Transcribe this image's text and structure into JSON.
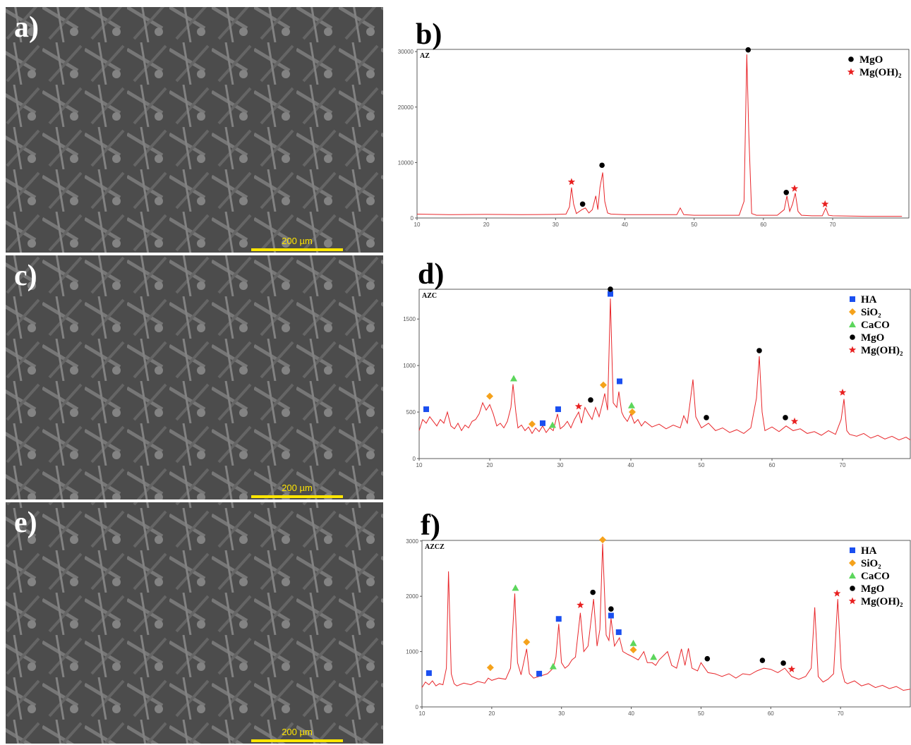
{
  "panels": [
    {
      "label": "a)",
      "scale_bar": "200 µm"
    },
    {
      "label": "c)",
      "scale_bar": "200 µm"
    },
    {
      "label": "e)",
      "scale_bar": "200 µm"
    }
  ],
  "chart_data": [
    {
      "type": "line",
      "label": "b)",
      "sample": "AZ",
      "color": "#e8262a",
      "x": [
        10,
        15,
        20,
        25,
        30,
        31.5,
        32.0,
        32.3,
        32.6,
        33,
        33.8,
        34.3,
        34.8,
        35.3,
        35.8,
        36.1,
        36.4,
        36.8,
        37.1,
        37.5,
        38,
        40,
        45,
        47.5,
        48,
        48.5,
        50,
        55,
        56.5,
        57.2,
        57.6,
        57.9,
        58.3,
        59,
        62,
        63,
        63.4,
        63.8,
        64.2,
        64.6,
        65,
        65.5,
        67,
        68.5,
        69,
        69.4,
        70,
        75,
        80
      ],
      "values": [
        700,
        600,
        650,
        600,
        650,
        700,
        2000,
        5500,
        2500,
        800,
        1500,
        1800,
        900,
        1500,
        4000,
        1500,
        5500,
        8200,
        3000,
        900,
        700,
        600,
        600,
        600,
        1800,
        600,
        500,
        500,
        500,
        3000,
        29500,
        15000,
        800,
        500,
        500,
        1500,
        4000,
        1200,
        2500,
        4500,
        1200,
        500,
        400,
        400,
        1800,
        500,
        400,
        300,
        300
      ],
      "xlim": [
        10,
        81
      ],
      "xticks": [
        10,
        20,
        30,
        40,
        50,
        60,
        70
      ],
      "ylim": [
        0,
        30400
      ],
      "yticks": [
        0,
        10000,
        20000,
        30000
      ],
      "legend": "upper right",
      "series": [
        {
          "name": "MgO",
          "marker": "circle",
          "color": "#000000",
          "x": [
            33.9,
            36.7,
            57.8,
            63.3
          ],
          "values": [
            2000,
            9000,
            29800,
            4100
          ]
        },
        {
          "name": "Mg(OH)₂",
          "marker": "star",
          "color": "#e82020",
          "x": [
            32.3,
            64.5,
            68.9
          ],
          "values": [
            6000,
            4800,
            2000
          ]
        }
      ]
    },
    {
      "type": "line",
      "label": "d)",
      "sample": "AZC",
      "color": "#e8262a",
      "x": [
        10,
        10.5,
        11,
        11.5,
        12,
        12.5,
        13,
        13.5,
        14,
        14.5,
        15,
        15.5,
        16,
        16.5,
        17,
        17.5,
        18,
        18.5,
        19,
        19.5,
        20,
        20.5,
        21,
        21.5,
        22,
        22.5,
        23,
        23.3,
        23.7,
        24,
        24.5,
        25,
        25.5,
        26,
        26.5,
        27,
        27.5,
        28,
        28.5,
        29,
        29.6,
        30,
        30.5,
        31,
        31.5,
        32,
        32.6,
        33,
        33.5,
        34,
        34.5,
        35,
        35.5,
        36,
        36.3,
        36.7,
        37.1,
        37.5,
        38,
        38.3,
        38.7,
        39,
        39.5,
        40,
        40.5,
        41,
        41.5,
        42,
        43,
        44,
        45,
        46,
        47,
        47.5,
        48,
        48.3,
        48.8,
        49.2,
        50,
        51,
        52,
        53,
        54,
        55,
        56,
        57,
        57.8,
        58.2,
        58.6,
        59,
        60,
        61,
        62,
        63,
        64,
        65,
        66,
        67,
        68,
        69,
        69.8,
        70.2,
        70.6,
        71,
        72,
        73,
        74,
        75,
        76,
        77,
        78,
        79,
        79.6
      ],
      "values": [
        300,
        420,
        380,
        450,
        400,
        350,
        420,
        380,
        500,
        350,
        320,
        380,
        300,
        360,
        330,
        400,
        420,
        480,
        600,
        520,
        580,
        480,
        350,
        380,
        330,
        400,
        550,
        800,
        500,
        330,
        360,
        300,
        340,
        270,
        330,
        290,
        350,
        280,
        330,
        300,
        480,
        320,
        350,
        400,
        330,
        420,
        500,
        380,
        550,
        480,
        420,
        550,
        450,
        600,
        700,
        520,
        1720,
        600,
        550,
        720,
        500,
        450,
        400,
        480,
        380,
        420,
        350,
        400,
        340,
        370,
        320,
        360,
        330,
        460,
        380,
        550,
        850,
        450,
        330,
        380,
        300,
        330,
        280,
        310,
        270,
        330,
        650,
        1100,
        500,
        300,
        340,
        290,
        350,
        300,
        320,
        270,
        290,
        250,
        300,
        260,
        420,
        640,
        300,
        260,
        240,
        270,
        220,
        250,
        210,
        240,
        200,
        230,
        200
      ],
      "xlim": [
        10,
        79.6
      ],
      "xticks": [
        10,
        20,
        30,
        40,
        50,
        60,
        70
      ],
      "ylim": [
        0,
        1820
      ],
      "yticks": [
        0,
        500,
        1000,
        1500
      ],
      "legend": "upper right",
      "series": [
        {
          "name": "HA",
          "marker": "square",
          "color": "#1a4ff0",
          "x": [
            11,
            27.5,
            29.7,
            37.1,
            38.4
          ],
          "values": [
            500,
            350,
            500,
            1740,
            800
          ]
        },
        {
          "name": "SiO₂",
          "marker": "diamond",
          "color": "#f5a21b",
          "x": [
            20,
            26,
            36.1,
            40.2
          ],
          "values": [
            640,
            340,
            760,
            470
          ]
        },
        {
          "name": "CaCO",
          "marker": "triangle",
          "color": "#5cd65c",
          "x": [
            23.4,
            28.9,
            40.1
          ],
          "values": [
            830,
            330,
            540
          ]
        },
        {
          "name": "MgO",
          "marker": "circle",
          "color": "#000000",
          "x": [
            34.3,
            37.1,
            50.7,
            58.2,
            61.9
          ],
          "values": [
            600,
            1790,
            410,
            1130,
            410
          ]
        },
        {
          "name": "Mg(OH)₂",
          "marker": "star",
          "color": "#e82020",
          "x": [
            32.6,
            63.2,
            70
          ],
          "values": [
            530,
            370,
            680
          ]
        }
      ]
    },
    {
      "type": "line",
      "label": "f)",
      "sample": "AZCZ",
      "color": "#e8262a",
      "x": [
        10,
        10.5,
        11,
        11.5,
        12,
        12.5,
        13,
        13.5,
        13.8,
        14.2,
        14.6,
        15,
        16,
        17,
        18,
        19,
        19.5,
        20,
        21,
        22,
        22.7,
        23.3,
        23.7,
        24.2,
        25,
        25.4,
        26,
        27,
        28,
        28.8,
        29.2,
        29.6,
        30,
        30.5,
        31,
        31.5,
        32,
        32.7,
        33.2,
        33.8,
        34.6,
        35.1,
        35.5,
        35.9,
        36.4,
        36.8,
        37.1,
        37.6,
        38.3,
        38.8,
        39.5,
        40.3,
        41,
        41.8,
        42.3,
        43,
        43.5,
        44,
        45.2,
        45.8,
        46.5,
        47.2,
        47.7,
        48.2,
        48.7,
        49.5,
        50,
        51,
        52,
        53,
        54,
        55,
        56,
        57,
        58,
        59,
        60,
        61,
        62,
        63,
        64,
        65,
        65.8,
        66.3,
        66.8,
        67.5,
        68.2,
        69,
        69.6,
        70.1,
        70.6,
        71,
        72,
        73,
        74,
        75,
        76,
        77,
        78,
        79,
        80
      ],
      "values": [
        350,
        450,
        400,
        470,
        380,
        420,
        400,
        700,
        2450,
        600,
        420,
        380,
        430,
        400,
        460,
        430,
        520,
        480,
        520,
        500,
        700,
        2050,
        800,
        580,
        1050,
        600,
        520,
        560,
        600,
        700,
        900,
        1500,
        800,
        700,
        750,
        850,
        900,
        1700,
        1000,
        1100,
        1950,
        1100,
        1400,
        2950,
        1300,
        1200,
        1600,
        1100,
        1250,
        1000,
        950,
        900,
        850,
        1000,
        800,
        800,
        750,
        850,
        1000,
        750,
        700,
        1050,
        750,
        1060,
        700,
        650,
        800,
        620,
        600,
        550,
        600,
        520,
        600,
        580,
        650,
        700,
        680,
        620,
        700,
        550,
        500,
        550,
        700,
        1800,
        550,
        450,
        500,
        600,
        1950,
        700,
        450,
        420,
        470,
        380,
        420,
        350,
        390,
        330,
        370,
        300,
        320
      ],
      "xlim": [
        10,
        80
      ],
      "xticks": [
        10,
        20,
        30,
        40,
        50,
        60,
        70
      ],
      "ylim": [
        0,
        3010
      ],
      "yticks": [
        0,
        1000,
        2000,
        3000
      ],
      "legend": "upper right",
      "series": [
        {
          "name": "HA",
          "marker": "square",
          "color": "#1a4ff0",
          "x": [
            11,
            26.8,
            29.6,
            37.1,
            38.2
          ],
          "values": [
            560,
            550,
            1540,
            1600,
            1300
          ]
        },
        {
          "name": "SiO₂",
          "marker": "diamond",
          "color": "#f5a21b",
          "x": [
            19.8,
            25,
            35.9,
            40.3
          ],
          "values": [
            660,
            1120,
            2970,
            980
          ]
        },
        {
          "name": "CaCO",
          "marker": "triangle",
          "color": "#5cd65c",
          "x": [
            23.4,
            28.8,
            40.3,
            43.2
          ],
          "values": [
            2100,
            680,
            1100,
            850
          ]
        },
        {
          "name": "MgO",
          "marker": "circle",
          "color": "#000000",
          "x": [
            34.5,
            37.1,
            50.9,
            58.8,
            61.8
          ],
          "values": [
            2020,
            1720,
            820,
            790,
            740
          ]
        },
        {
          "name": "Mg(OH)₂",
          "marker": "star",
          "color": "#e82020",
          "x": [
            32.7,
            63,
            69.5
          ],
          "values": [
            1790,
            630,
            2000
          ]
        }
      ]
    }
  ]
}
